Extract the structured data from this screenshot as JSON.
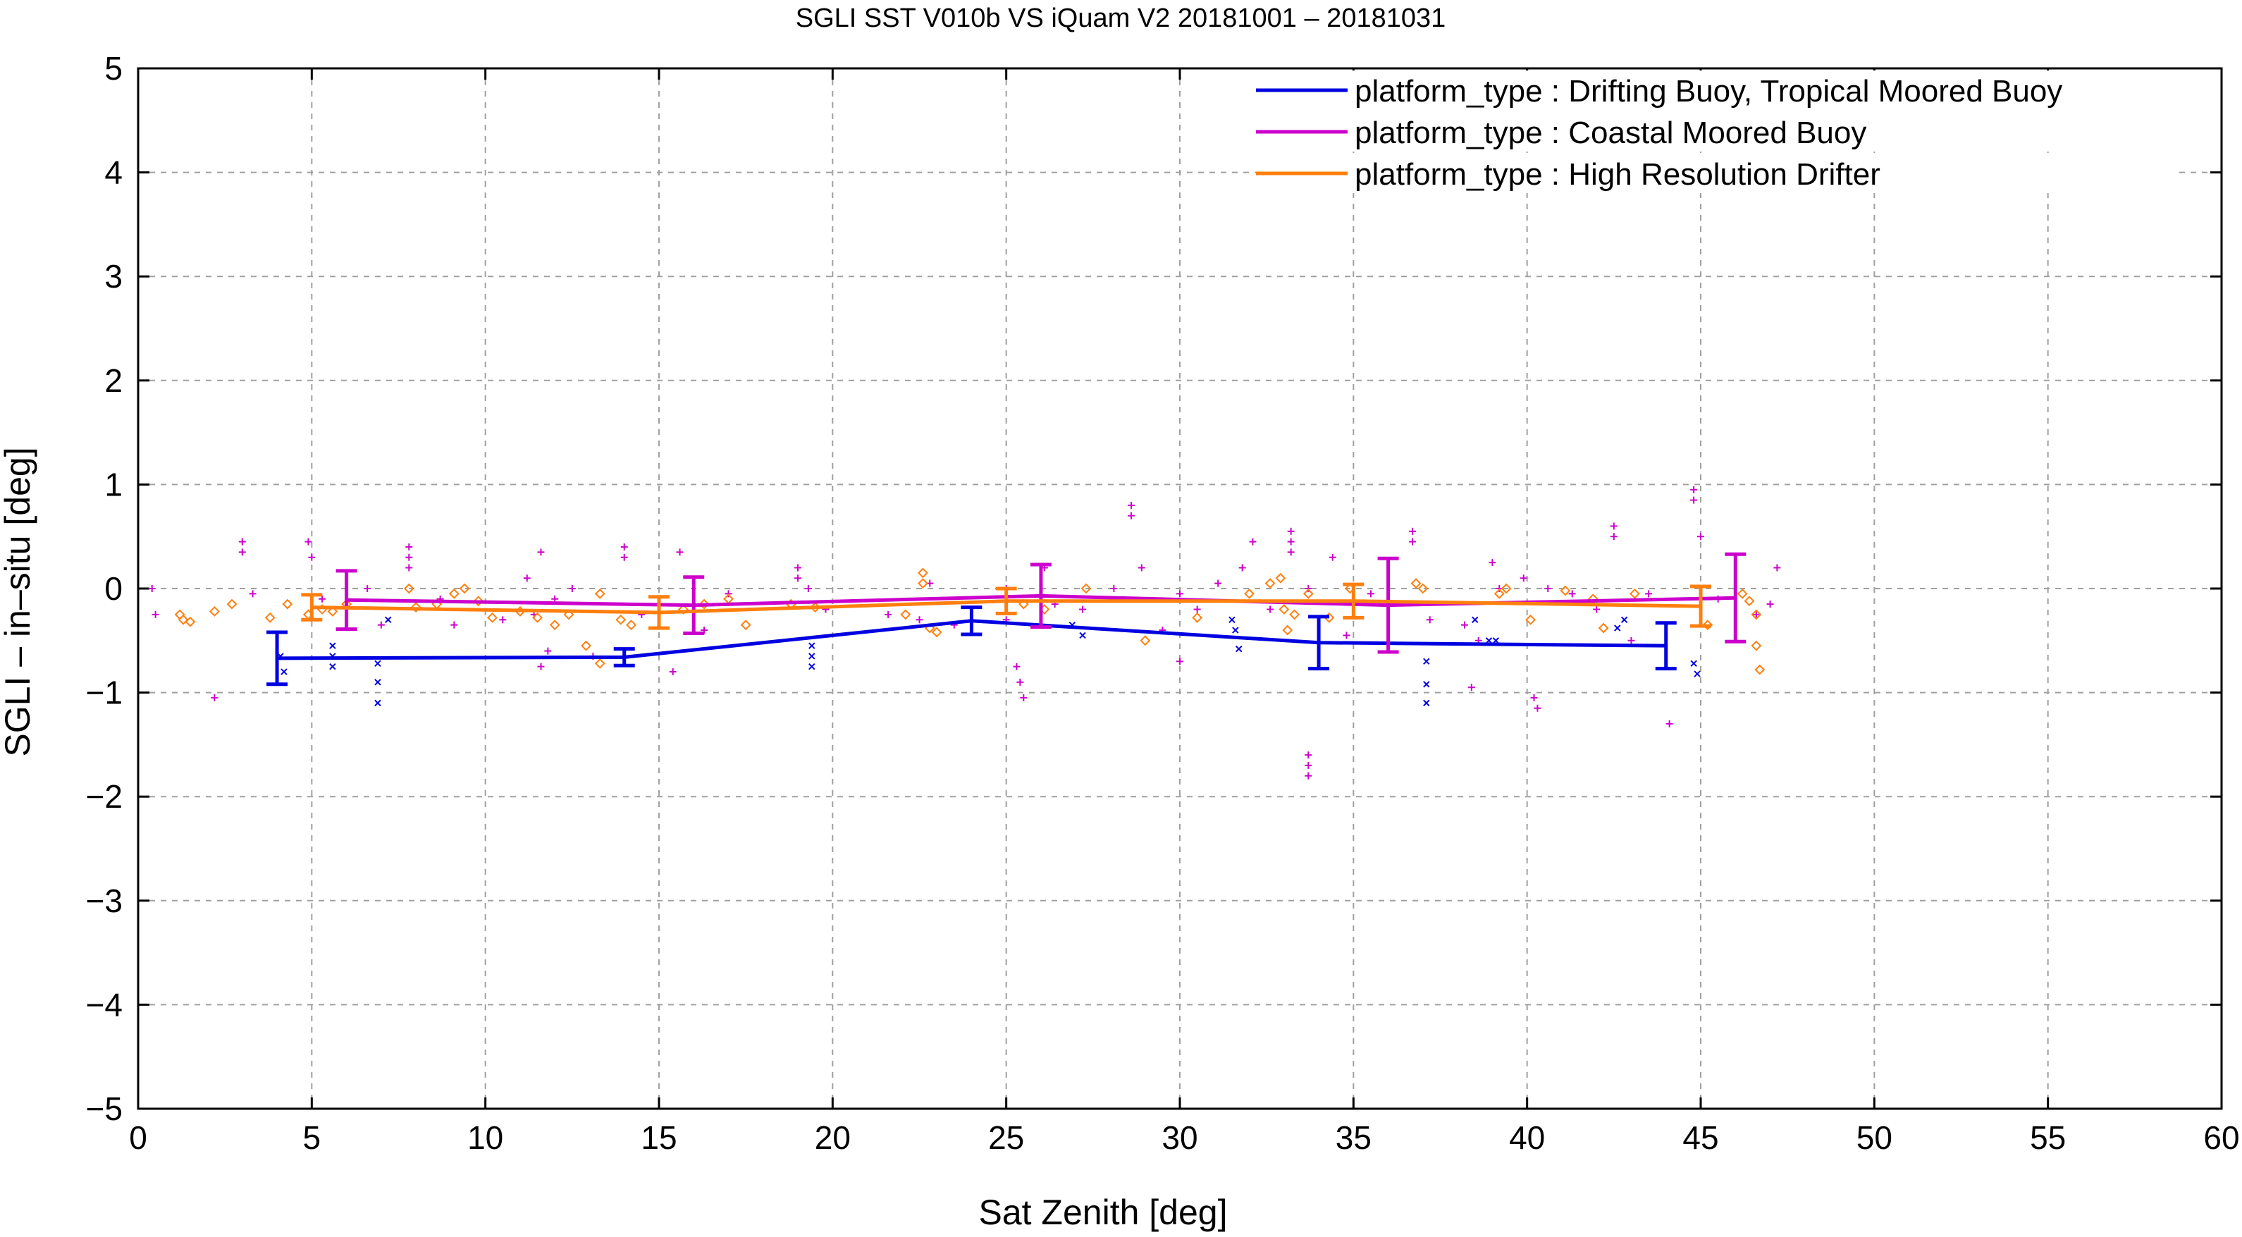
{
  "chart_data": {
    "type": "line",
    "title": "SGLI SST V010b VS iQuam V2 20181001 – 20181031",
    "xlabel": "Sat Zenith [deg]",
    "ylabel": "SGLI – in–situ [deg]",
    "xlim": [
      0,
      60
    ],
    "ylim": [
      -5,
      5
    ],
    "x_ticks": [
      0,
      5,
      10,
      15,
      20,
      25,
      30,
      35,
      40,
      45,
      50,
      55,
      60
    ],
    "y_ticks": [
      5,
      4,
      3,
      2,
      1,
      0,
      -1,
      -2,
      -3,
      -4,
      -5
    ],
    "x_tick_labels": [
      "0",
      "5",
      "10",
      "15",
      "20",
      "25",
      "30",
      "35",
      "40",
      "45",
      "50",
      "55",
      "60"
    ],
    "y_tick_labels": [
      "5",
      "4",
      "3",
      "2",
      "1",
      "0",
      "−1",
      "−2",
      "−3",
      "−4",
      "−5"
    ],
    "grid": true,
    "legend_position": "top-right",
    "series": [
      {
        "name": "platform_type : Drifting Buoy, Tropical Moored Buoy",
        "color": "#0000e0",
        "marker": "x",
        "line": [
          {
            "x": 4,
            "y": -0.67,
            "err": 0.25
          },
          {
            "x": 14,
            "y": -0.66,
            "err": 0.08
          },
          {
            "x": 24,
            "y": -0.31,
            "err": 0.13
          },
          {
            "x": 34,
            "y": -0.52,
            "err": 0.25
          },
          {
            "x": 44,
            "y": -0.55,
            "err": 0.22
          }
        ],
        "points": [
          [
            4.1,
            -0.65
          ],
          [
            4.2,
            -0.8
          ],
          [
            5.6,
            -0.55
          ],
          [
            5.6,
            -0.65
          ],
          [
            5.6,
            -0.75
          ],
          [
            6.9,
            -0.72
          ],
          [
            6.9,
            -0.9
          ],
          [
            6.9,
            -1.1
          ],
          [
            7.2,
            -0.3
          ],
          [
            19.4,
            -0.55
          ],
          [
            19.4,
            -0.65
          ],
          [
            19.4,
            -0.75
          ],
          [
            26.9,
            -0.35
          ],
          [
            27.2,
            -0.45
          ],
          [
            31.5,
            -0.3
          ],
          [
            31.6,
            -0.4
          ],
          [
            31.7,
            -0.58
          ],
          [
            37.1,
            -0.7
          ],
          [
            37.1,
            -0.92
          ],
          [
            37.1,
            -1.1
          ],
          [
            38.5,
            -0.3
          ],
          [
            38.9,
            -0.5
          ],
          [
            39.1,
            -0.5
          ],
          [
            42.6,
            -0.38
          ],
          [
            42.8,
            -0.3
          ],
          [
            44.8,
            -0.72
          ],
          [
            44.9,
            -0.82
          ]
        ]
      },
      {
        "name": "platform_type : Coastal Moored Buoy",
        "color": "#cc00cc",
        "marker": "+",
        "line": [
          {
            "x": 6,
            "y": -0.11,
            "err": 0.28
          },
          {
            "x": 16,
            "y": -0.16,
            "err": 0.27
          },
          {
            "x": 26,
            "y": -0.07,
            "err": 0.3
          },
          {
            "x": 36,
            "y": -0.16,
            "err": 0.45
          },
          {
            "x": 46,
            "y": -0.09,
            "err": 0.42
          }
        ],
        "points": [
          [
            0.4,
            0.0
          ],
          [
            0.5,
            -0.25
          ],
          [
            2.2,
            -1.05
          ],
          [
            3.0,
            0.45
          ],
          [
            3.0,
            0.35
          ],
          [
            3.3,
            -0.05
          ],
          [
            4.9,
            0.45
          ],
          [
            5.0,
            0.3
          ],
          [
            5.3,
            -0.1
          ],
          [
            6.6,
            0.0
          ],
          [
            7.0,
            -0.35
          ],
          [
            7.8,
            0.4
          ],
          [
            7.8,
            0.3
          ],
          [
            7.8,
            0.2
          ],
          [
            8.7,
            -0.1
          ],
          [
            9.1,
            -0.35
          ],
          [
            10.5,
            -0.3
          ],
          [
            11.2,
            0.1
          ],
          [
            11.4,
            -0.25
          ],
          [
            11.6,
            -0.75
          ],
          [
            11.8,
            -0.6
          ],
          [
            11.6,
            0.35
          ],
          [
            12.0,
            -0.1
          ],
          [
            12.5,
            0.0
          ],
          [
            13.1,
            -0.65
          ],
          [
            14.0,
            0.4
          ],
          [
            14.0,
            0.3
          ],
          [
            14.5,
            -0.25
          ],
          [
            15.4,
            -0.8
          ],
          [
            15.6,
            0.35
          ],
          [
            16.3,
            -0.4
          ],
          [
            17.0,
            -0.05
          ],
          [
            19.0,
            0.2
          ],
          [
            19.0,
            0.1
          ],
          [
            19.3,
            0.0
          ],
          [
            19.8,
            -0.2
          ],
          [
            21.6,
            -0.25
          ],
          [
            22.5,
            -0.3
          ],
          [
            22.8,
            0.05
          ],
          [
            23.5,
            -0.35
          ],
          [
            25.0,
            0.0
          ],
          [
            25.0,
            -0.3
          ],
          [
            25.3,
            -0.75
          ],
          [
            25.4,
            -0.9
          ],
          [
            25.5,
            -1.05
          ],
          [
            26.1,
            0.2
          ],
          [
            26.4,
            -0.15
          ],
          [
            27.2,
            -0.2
          ],
          [
            28.1,
            0.0
          ],
          [
            28.6,
            0.8
          ],
          [
            28.6,
            0.7
          ],
          [
            28.9,
            0.2
          ],
          [
            29.5,
            -0.4
          ],
          [
            30.0,
            -0.05
          ],
          [
            30.0,
            -0.7
          ],
          [
            30.5,
            -0.2
          ],
          [
            31.1,
            0.05
          ],
          [
            31.8,
            0.2
          ],
          [
            32.1,
            0.45
          ],
          [
            32.6,
            -0.2
          ],
          [
            33.2,
            0.55
          ],
          [
            33.2,
            0.45
          ],
          [
            33.2,
            0.35
          ],
          [
            33.7,
            0.0
          ],
          [
            33.7,
            -1.6
          ],
          [
            33.7,
            -1.7
          ],
          [
            33.7,
            -1.8
          ],
          [
            34.4,
            0.3
          ],
          [
            34.8,
            -0.45
          ],
          [
            35.5,
            -0.05
          ],
          [
            36.7,
            0.55
          ],
          [
            36.7,
            0.45
          ],
          [
            37.2,
            -0.3
          ],
          [
            38.2,
            -0.35
          ],
          [
            38.4,
            -0.95
          ],
          [
            38.6,
            -0.5
          ],
          [
            39.0,
            0.25
          ],
          [
            39.2,
            0.0
          ],
          [
            39.9,
            0.1
          ],
          [
            40.2,
            -1.05
          ],
          [
            40.3,
            -1.15
          ],
          [
            40.6,
            0.0
          ],
          [
            41.3,
            -0.05
          ],
          [
            42.0,
            -0.2
          ],
          [
            42.5,
            0.6
          ],
          [
            42.5,
            0.5
          ],
          [
            43.0,
            -0.5
          ],
          [
            43.5,
            -0.05
          ],
          [
            44.1,
            -1.3
          ],
          [
            44.8,
            0.95
          ],
          [
            44.8,
            0.85
          ],
          [
            45.0,
            0.5
          ],
          [
            45.5,
            -0.1
          ],
          [
            46.6,
            -0.25
          ],
          [
            47.0,
            -0.15
          ],
          [
            47.2,
            0.2
          ]
        ]
      },
      {
        "name": "platform_type : High Resolution Drifter",
        "color": "#ff7f0e",
        "marker": "diamond",
        "line": [
          {
            "x": 5,
            "y": -0.18,
            "err": 0.12
          },
          {
            "x": 15,
            "y": -0.23,
            "err": 0.15
          },
          {
            "x": 25,
            "y": -0.12,
            "err": 0.12
          },
          {
            "x": 35,
            "y": -0.12,
            "err": 0.16
          },
          {
            "x": 45,
            "y": -0.17,
            "err": 0.19
          }
        ],
        "points": [
          [
            1.2,
            -0.25
          ],
          [
            1.3,
            -0.3
          ],
          [
            1.5,
            -0.32
          ],
          [
            2.2,
            -0.22
          ],
          [
            2.7,
            -0.15
          ],
          [
            3.8,
            -0.28
          ],
          [
            4.3,
            -0.15
          ],
          [
            4.9,
            -0.25
          ],
          [
            5.3,
            -0.2
          ],
          [
            5.6,
            -0.22
          ],
          [
            6.0,
            -0.15
          ],
          [
            7.8,
            0.0
          ],
          [
            8.0,
            -0.18
          ],
          [
            8.6,
            -0.15
          ],
          [
            9.1,
            -0.05
          ],
          [
            9.4,
            0.0
          ],
          [
            9.8,
            -0.12
          ],
          [
            10.2,
            -0.28
          ],
          [
            11.0,
            -0.22
          ],
          [
            11.5,
            -0.28
          ],
          [
            12.0,
            -0.35
          ],
          [
            12.4,
            -0.25
          ],
          [
            12.9,
            -0.55
          ],
          [
            13.3,
            -0.72
          ],
          [
            13.3,
            -0.05
          ],
          [
            13.9,
            -0.3
          ],
          [
            14.2,
            -0.35
          ],
          [
            15.7,
            -0.2
          ],
          [
            16.3,
            -0.15
          ],
          [
            17.0,
            -0.1
          ],
          [
            17.5,
            -0.35
          ],
          [
            18.8,
            -0.15
          ],
          [
            19.5,
            -0.18
          ],
          [
            22.1,
            -0.25
          ],
          [
            22.6,
            0.15
          ],
          [
            22.6,
            0.05
          ],
          [
            22.8,
            -0.38
          ],
          [
            23.0,
            -0.42
          ],
          [
            25.5,
            -0.15
          ],
          [
            26.1,
            -0.2
          ],
          [
            27.3,
            0.0
          ],
          [
            29.0,
            -0.5
          ],
          [
            30.5,
            -0.28
          ],
          [
            32.0,
            -0.05
          ],
          [
            32.6,
            0.05
          ],
          [
            32.9,
            0.1
          ],
          [
            33.0,
            -0.2
          ],
          [
            33.1,
            -0.4
          ],
          [
            33.3,
            -0.25
          ],
          [
            33.7,
            -0.05
          ],
          [
            34.3,
            -0.28
          ],
          [
            34.9,
            0.0
          ],
          [
            36.8,
            0.05
          ],
          [
            37.0,
            0.0
          ],
          [
            39.2,
            -0.05
          ],
          [
            39.4,
            0.0
          ],
          [
            40.1,
            -0.3
          ],
          [
            41.1,
            -0.02
          ],
          [
            41.9,
            -0.1
          ],
          [
            42.2,
            -0.38
          ],
          [
            43.1,
            -0.05
          ],
          [
            45.2,
            -0.35
          ],
          [
            46.2,
            -0.05
          ],
          [
            46.4,
            -0.12
          ],
          [
            46.6,
            -0.25
          ],
          [
            46.6,
            -0.55
          ],
          [
            46.7,
            -0.78
          ]
        ]
      }
    ]
  }
}
